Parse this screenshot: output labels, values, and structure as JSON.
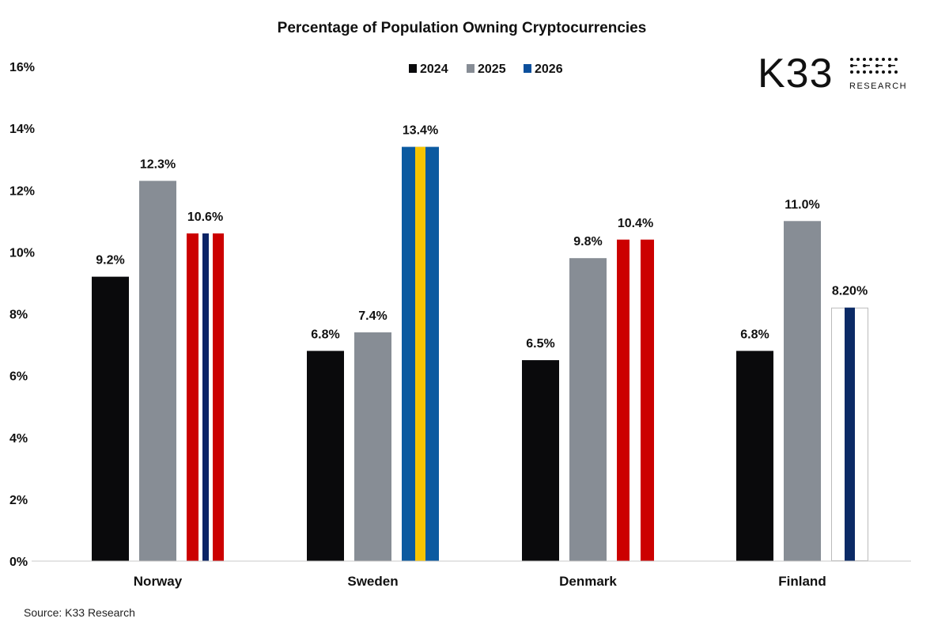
{
  "chart_data": {
    "type": "bar",
    "title": "Percentage of Population Owning Cryptocurrencies",
    "categories": [
      "Norway",
      "Sweden",
      "Denmark",
      "Finland"
    ],
    "series": [
      {
        "name": "2024",
        "values": [
          9.2,
          6.8,
          6.5,
          6.8
        ],
        "labels": [
          "9.2%",
          "6.8%",
          "6.5%",
          "6.8%"
        ],
        "color": "#0a0a0c"
      },
      {
        "name": "2025",
        "values": [
          12.3,
          7.4,
          9.8,
          11.0
        ],
        "labels": [
          "12.3%",
          "7.4%",
          "9.8%",
          "11.0%"
        ],
        "color": "#878d95"
      },
      {
        "name": "2026",
        "values": [
          10.6,
          13.4,
          10.4,
          8.2
        ],
        "labels": [
          "10.6%",
          "13.4%",
          "10.4%",
          "8.20%"
        ],
        "color": "#0b4f9c"
      }
    ],
    "flag_styles_2026": [
      "norway",
      "sweden",
      "denmark",
      "finland"
    ],
    "flag_colors": {
      "norway_red": "#cc0000",
      "norway_blue": "#0b2466",
      "sweden_blue": "#0b5aa0",
      "sweden_yellow": "#f7c400",
      "denmark_red": "#cc0000",
      "finland_blue": "#0b2a66"
    },
    "ylim": [
      0,
      16
    ],
    "yticks": [
      "0%",
      "2%",
      "4%",
      "6%",
      "8%",
      "10%",
      "12%",
      "14%",
      "16%"
    ],
    "ytick_values": [
      0,
      2,
      4,
      6,
      8,
      10,
      12,
      14,
      16
    ],
    "xlabel": "",
    "ylabel": "",
    "grid": false,
    "legend_position": "top-center"
  },
  "source": "Source: K33 Research",
  "logo": {
    "main": "K33",
    "sub": "RESEARCH"
  }
}
